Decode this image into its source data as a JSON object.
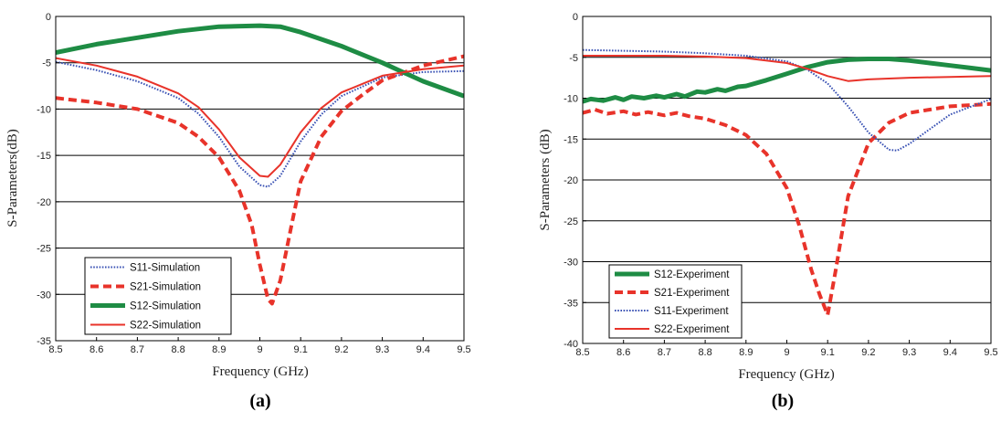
{
  "chart_data": [
    {
      "type": "line",
      "panel_label": "(a)",
      "xlabel": "Frequency (GHz)",
      "ylabel": "S-Parameters(dB)",
      "xlim": [
        8.5,
        9.5
      ],
      "ylim": [
        -35,
        0
      ],
      "xticks": [
        8.5,
        8.6,
        8.7,
        8.8,
        8.9,
        9,
        9.1,
        9.2,
        9.3,
        9.4,
        9.5
      ],
      "yticks": [
        0,
        -5,
        -10,
        -15,
        -20,
        -25,
        -30,
        -35
      ],
      "grid": "horizontal",
      "legend_position": "bottom-left",
      "series": [
        {
          "name": "S11-Simulation",
          "color": "#3a52b4",
          "style": "dotted",
          "x": [
            8.5,
            8.6,
            8.7,
            8.8,
            8.85,
            8.9,
            8.95,
            9.0,
            9.02,
            9.05,
            9.1,
            9.15,
            9.2,
            9.3,
            9.4,
            9.5
          ],
          "y": [
            -4.9,
            -5.8,
            -7.0,
            -8.8,
            -10.5,
            -13.0,
            -16.2,
            -18.2,
            -18.4,
            -17.2,
            -13.5,
            -10.6,
            -8.6,
            -6.6,
            -6.0,
            -5.9
          ]
        },
        {
          "name": "S21-Simulation",
          "color": "#e8332a",
          "style": "dashed",
          "x": [
            8.5,
            8.6,
            8.7,
            8.8,
            8.85,
            8.9,
            8.95,
            8.98,
            9.0,
            9.02,
            9.03,
            9.05,
            9.08,
            9.1,
            9.15,
            9.2,
            9.25,
            9.3,
            9.4,
            9.5
          ],
          "y": [
            -8.8,
            -9.3,
            -10.0,
            -11.5,
            -13.0,
            -15.2,
            -18.8,
            -22.5,
            -26.8,
            -30.5,
            -31.0,
            -28.5,
            -22.0,
            -17.8,
            -13.0,
            -10.2,
            -8.5,
            -6.9,
            -5.3,
            -4.3
          ]
        },
        {
          "name": "S12-Simulation",
          "color": "#1e8c44",
          "style": "solid-thick",
          "x": [
            8.5,
            8.6,
            8.7,
            8.8,
            8.9,
            9.0,
            9.05,
            9.1,
            9.2,
            9.3,
            9.35,
            9.4,
            9.5
          ],
          "y": [
            -3.9,
            -3.0,
            -2.3,
            -1.6,
            -1.1,
            -1.0,
            -1.1,
            -1.7,
            -3.2,
            -5.0,
            -6.0,
            -7.0,
            -8.6
          ]
        },
        {
          "name": "S22-Simulation",
          "color": "#e8332a",
          "style": "solid",
          "x": [
            8.5,
            8.6,
            8.7,
            8.8,
            8.85,
            8.9,
            8.95,
            9.0,
            9.02,
            9.05,
            9.1,
            9.15,
            9.2,
            9.3,
            9.4,
            9.5
          ],
          "y": [
            -4.5,
            -5.3,
            -6.5,
            -8.3,
            -9.8,
            -12.2,
            -15.2,
            -17.2,
            -17.3,
            -16.0,
            -12.5,
            -9.9,
            -8.2,
            -6.4,
            -5.7,
            -5.3
          ]
        }
      ]
    },
    {
      "type": "line",
      "panel_label": "(b)",
      "xlabel": "Frequency (GHz)",
      "ylabel": "S-Parameters (dB)",
      "xlim": [
        8.5,
        9.5
      ],
      "ylim": [
        -40,
        0
      ],
      "xticks": [
        8.5,
        8.6,
        8.7,
        8.8,
        8.9,
        9,
        9.1,
        9.2,
        9.3,
        9.4,
        9.5
      ],
      "yticks": [
        0,
        -5,
        -10,
        -15,
        -20,
        -25,
        -30,
        -35,
        -40
      ],
      "grid": "horizontal",
      "legend_position": "bottom-left",
      "series": [
        {
          "name": "S12-Experiment",
          "color": "#1e8c44",
          "style": "solid-thick",
          "x": [
            8.5,
            8.52,
            8.55,
            8.58,
            8.6,
            8.62,
            8.65,
            8.68,
            8.7,
            8.73,
            8.75,
            8.78,
            8.8,
            8.83,
            8.85,
            8.88,
            8.9,
            8.95,
            9.0,
            9.05,
            9.1,
            9.15,
            9.2,
            9.25,
            9.3,
            9.35,
            9.4,
            9.45,
            9.5
          ],
          "y": [
            -10.4,
            -10.1,
            -10.3,
            -9.9,
            -10.2,
            -9.8,
            -10.0,
            -9.7,
            -9.9,
            -9.5,
            -9.8,
            -9.2,
            -9.3,
            -8.9,
            -9.1,
            -8.6,
            -8.5,
            -7.8,
            -7.0,
            -6.2,
            -5.6,
            -5.3,
            -5.2,
            -5.2,
            -5.4,
            -5.7,
            -6.0,
            -6.3,
            -6.6
          ]
        },
        {
          "name": "S21-Experiment",
          "color": "#e8332a",
          "style": "dashed",
          "x": [
            8.5,
            8.53,
            8.56,
            8.6,
            8.63,
            8.66,
            8.7,
            8.73,
            8.76,
            8.8,
            8.85,
            8.9,
            8.95,
            9.0,
            9.03,
            9.06,
            9.08,
            9.1,
            9.12,
            9.15,
            9.2,
            9.25,
            9.3,
            9.4,
            9.5
          ],
          "y": [
            -11.8,
            -11.4,
            -11.9,
            -11.6,
            -12.0,
            -11.7,
            -12.1,
            -11.8,
            -12.2,
            -12.5,
            -13.3,
            -14.5,
            -16.8,
            -21.0,
            -25.5,
            -31.0,
            -34.0,
            -36.5,
            -31.0,
            -22.0,
            -15.5,
            -13.0,
            -11.8,
            -11.0,
            -10.7
          ]
        },
        {
          "name": "S11-Experiment",
          "color": "#3a52b4",
          "style": "dotted",
          "x": [
            8.5,
            8.6,
            8.7,
            8.8,
            8.9,
            9.0,
            9.05,
            9.1,
            9.15,
            9.2,
            9.25,
            9.27,
            9.3,
            9.35,
            9.4,
            9.5
          ],
          "y": [
            -4.1,
            -4.2,
            -4.3,
            -4.5,
            -4.8,
            -5.5,
            -6.5,
            -8.2,
            -11.0,
            -14.2,
            -16.3,
            -16.4,
            -15.6,
            -13.8,
            -12.0,
            -10.1
          ]
        },
        {
          "name": "S22-Experiment",
          "color": "#e8332a",
          "style": "solid",
          "x": [
            8.5,
            8.6,
            8.7,
            8.8,
            8.9,
            9.0,
            9.05,
            9.1,
            9.15,
            9.2,
            9.3,
            9.4,
            9.5
          ],
          "y": [
            -4.8,
            -4.8,
            -4.8,
            -4.9,
            -5.1,
            -5.7,
            -6.4,
            -7.3,
            -7.9,
            -7.7,
            -7.5,
            -7.4,
            -7.3
          ]
        }
      ]
    }
  ]
}
